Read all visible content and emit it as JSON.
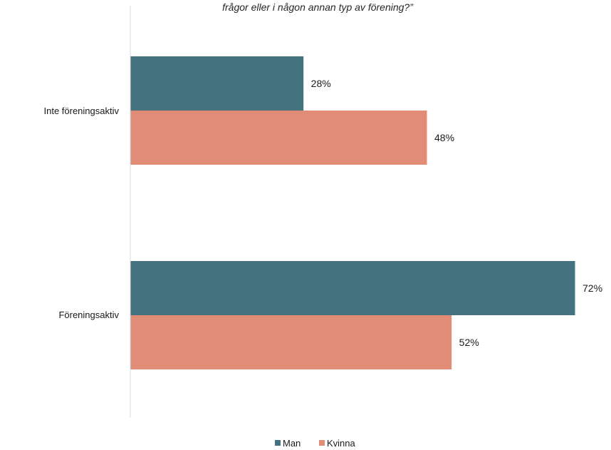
{
  "chart_data": {
    "type": "bar",
    "orientation": "horizontal",
    "title": "frågor eller i någon annan typ av förening?”",
    "categories": [
      "Inte föreningsaktiv",
      "Föreningsaktiv"
    ],
    "series": [
      {
        "name": "Man",
        "color": "#44737f",
        "values": [
          28,
          72
        ]
      },
      {
        "name": "Kvinna",
        "color": "#e08c77",
        "values": [
          48,
          52
        ]
      }
    ],
    "data_labels": [
      [
        "28%",
        "48%"
      ],
      [
        "72%",
        "52%"
      ]
    ],
    "value_unit": "%",
    "xlim": [
      0,
      72
    ],
    "grid": false,
    "legend_position": "bottom"
  }
}
